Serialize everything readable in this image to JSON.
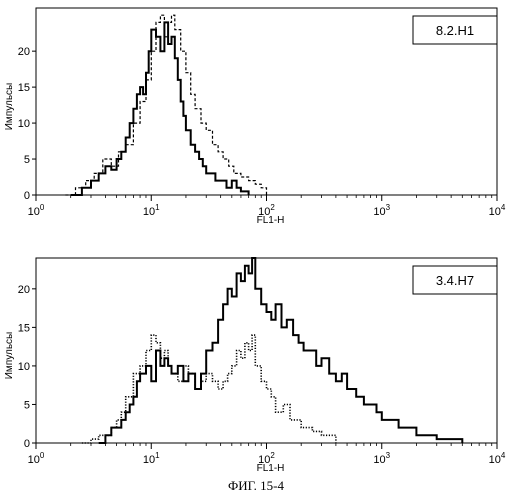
{
  "caption": "ФИГ. 15-4",
  "chart_data": [
    {
      "type": "line",
      "sample_label": "8.2.H1",
      "xlabel": "FL1-H",
      "ylabel": "Импульсы",
      "xscale": "log",
      "xlim": [
        1,
        10000
      ],
      "ylim": [
        0,
        26
      ],
      "x_ticks": [
        {
          "base": "10",
          "exp": "0"
        },
        {
          "base": "10",
          "exp": "1"
        },
        {
          "base": "10",
          "exp": "2"
        },
        {
          "base": "10",
          "exp": "3"
        },
        {
          "base": "10",
          "exp": "4"
        }
      ],
      "y_ticks": [
        "0",
        "5",
        "10",
        "15",
        "20"
      ],
      "y_tick_values": [
        0,
        5,
        10,
        15,
        20
      ],
      "grid": false,
      "series": [
        {
          "style": "solid",
          "x": [
            2.0,
            2.5,
            3.0,
            3.5,
            4.0,
            4.5,
            5.0,
            5.5,
            6.0,
            6.5,
            7.0,
            7.5,
            8.0,
            8.5,
            9.0,
            9.5,
            10.0,
            11.0,
            12.0,
            13.0,
            14.0,
            15.0,
            16.0,
            17.0,
            18.0,
            19.0,
            20.0,
            22.0,
            24.0,
            26.0,
            28.0,
            30.0,
            33.0,
            36.0,
            40.0,
            45.0,
            50.0,
            55.0,
            60.0,
            70.0
          ],
          "y": [
            0,
            1,
            2,
            3,
            4,
            3.5,
            5,
            6,
            8,
            10,
            12,
            14,
            15,
            14,
            17,
            20,
            23,
            22,
            20,
            24,
            21,
            22,
            19,
            16,
            13,
            11,
            9,
            7,
            6,
            5,
            4,
            3,
            3,
            2,
            2,
            1,
            2,
            1,
            0.5,
            0
          ]
        },
        {
          "style": "dashed",
          "x": [
            1.8,
            2.2,
            2.7,
            3.2,
            3.8,
            4.5,
            5.2,
            6.0,
            7.0,
            8.0,
            9.0,
            10.0,
            11.0,
            12.0,
            13.0,
            14.0,
            15.0,
            16.0,
            18.0,
            20.0,
            22.0,
            24.0,
            27.0,
            30.0,
            34.0,
            38.0,
            42.0,
            47.0,
            52.0,
            60.0,
            70.0,
            80.0,
            90.0,
            100.0
          ],
          "y": [
            0,
            1,
            2,
            3,
            5,
            4,
            6,
            7,
            10,
            13,
            16,
            20,
            24,
            25,
            22,
            24,
            25,
            23,
            20,
            17,
            14,
            12,
            10,
            9,
            7,
            6,
            5,
            4,
            3,
            2.5,
            2,
            1.5,
            1,
            0
          ]
        }
      ]
    },
    {
      "type": "line",
      "sample_label": "3.4.H7",
      "xlabel": "FL1-H",
      "ylabel": "Импульсы",
      "xscale": "log",
      "xlim": [
        1,
        10000
      ],
      "ylim": [
        0,
        24
      ],
      "x_ticks": [
        {
          "base": "10",
          "exp": "0"
        },
        {
          "base": "10",
          "exp": "1"
        },
        {
          "base": "10",
          "exp": "2"
        },
        {
          "base": "10",
          "exp": "3"
        },
        {
          "base": "10",
          "exp": "4"
        }
      ],
      "y_ticks": [
        "0",
        "5",
        "10",
        "15",
        "20"
      ],
      "y_tick_values": [
        0,
        5,
        10,
        15,
        20
      ],
      "grid": false,
      "series": [
        {
          "style": "solid",
          "x": [
            3.5,
            4.0,
            4.5,
            5.0,
            5.5,
            6.0,
            6.5,
            7.0,
            7.5,
            8.0,
            9.0,
            10.0,
            11.0,
            12.0,
            13.0,
            14.0,
            15.0,
            17.0,
            19.0,
            21.0,
            24.0,
            27.0,
            30.0,
            34.0,
            38.0,
            42.0,
            46.0,
            50.0,
            55.0,
            60.0,
            65.0,
            70.0,
            75.0,
            80.0,
            90.0,
            100.0,
            110.0,
            120.0,
            135.0,
            150.0,
            170.0,
            190.0,
            210.0,
            240.0,
            270.0,
            300.0,
            350.0,
            400.0,
            450.0,
            500.0,
            600.0,
            700.0,
            800.0,
            900.0,
            1000.0,
            1200.0,
            1400.0,
            1600.0,
            2000.0,
            2500.0,
            3000.0,
            4000.0,
            5000.0
          ],
          "y": [
            0,
            1,
            2,
            2,
            3,
            4,
            5,
            6,
            8,
            9,
            10,
            8,
            12,
            10,
            11,
            10,
            9,
            10,
            8,
            9,
            7,
            9,
            12,
            13,
            16,
            18,
            20,
            19,
            22,
            21,
            23,
            22,
            24,
            20,
            18,
            17,
            16,
            18,
            15,
            16,
            14,
            13,
            12,
            12,
            10,
            11,
            9,
            8,
            9,
            7,
            6,
            5,
            5,
            4,
            3,
            3,
            2,
            2,
            1,
            1,
            0.5,
            0.5,
            0
          ]
        },
        {
          "style": "dotted",
          "x": [
            2.5,
            3.0,
            3.5,
            4.0,
            4.5,
            5.0,
            5.5,
            6.0,
            7.0,
            8.0,
            9.0,
            10.0,
            11.0,
            12.0,
            13.0,
            14.0,
            15.0,
            17.0,
            19.0,
            21.0,
            24.0,
            27.0,
            30.0,
            34.0,
            38.0,
            42.0,
            46.0,
            50.0,
            55.0,
            60.0,
            65.0,
            70.0,
            75.0,
            80.0,
            90.0,
            100.0,
            110.0,
            120.0,
            140.0,
            160.0,
            180.0,
            200.0,
            250.0,
            300.0,
            400.0
          ],
          "y": [
            0,
            0.5,
            1,
            1,
            2,
            3,
            4,
            6,
            9,
            10,
            12,
            14,
            13,
            11,
            12,
            10,
            9,
            8,
            10,
            9,
            7,
            8,
            9,
            8,
            7,
            8,
            9,
            10,
            12,
            11,
            13,
            12,
            14,
            10,
            8,
            7,
            6,
            4,
            5,
            3,
            3,
            2,
            1.5,
            1,
            0
          ]
        }
      ]
    }
  ]
}
